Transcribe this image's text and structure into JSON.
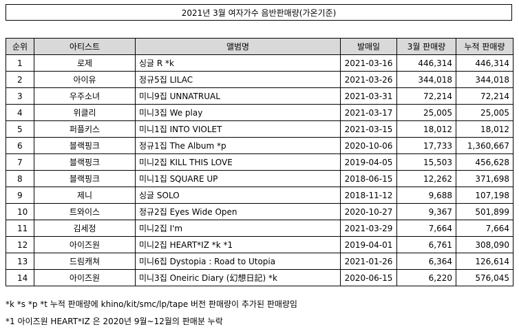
{
  "title": "2021년 3월 여자가수 음반판매량(가온기준)",
  "headers": [
    "순위",
    "아티스트",
    "앨범명",
    "발매일",
    "3월 판매량",
    "누적 판매량"
  ],
  "rows": [
    {
      "rank": "1",
      "artist": "로제",
      "album": "싱글 R *k",
      "date": "2021-03-16",
      "march": "446,314",
      "total": "446,314"
    },
    {
      "rank": "2",
      "artist": "아이유",
      "album": "정규5집 LILAC",
      "date": "2021-03-26",
      "march": "344,018",
      "total": "344,018"
    },
    {
      "rank": "3",
      "artist": "우주소녀",
      "album": "미니9집 UNNATRUAL",
      "date": "2021-03-31",
      "march": "72,214",
      "total": "72,214"
    },
    {
      "rank": "4",
      "artist": "위클리",
      "album": "미니3집 We play",
      "date": "2021-03-17",
      "march": "25,005",
      "total": "25,005"
    },
    {
      "rank": "5",
      "artist": "퍼플키스",
      "album": "미니1집 INTO VIOLET",
      "date": "2021-03-15",
      "march": "18,012",
      "total": "18,012"
    },
    {
      "rank": "6",
      "artist": "블랙핑크",
      "album": "정규1집 The Album *p",
      "date": "2020-10-06",
      "march": "17,733",
      "total": "1,360,667"
    },
    {
      "rank": "7",
      "artist": "블랙핑크",
      "album": "미니2집 KILL THIS LOVE",
      "date": "2019-04-05",
      "march": "15,503",
      "total": "456,628"
    },
    {
      "rank": "8",
      "artist": "블랙핑크",
      "album": "미니1집 SQUARE UP",
      "date": "2018-06-15",
      "march": "12,262",
      "total": "371,698"
    },
    {
      "rank": "9",
      "artist": "제니",
      "album": "싱글 SOLO",
      "date": "2018-11-12",
      "march": "9,688",
      "total": "107,198"
    },
    {
      "rank": "10",
      "artist": "트와이스",
      "album": "정규2집 Eyes Wide Open",
      "date": "2020-10-27",
      "march": "9,367",
      "total": "501,899"
    },
    {
      "rank": "11",
      "artist": "김세정",
      "album": "미니2집 I'm",
      "date": "2021-03-29",
      "march": "7,664",
      "total": "7,664"
    },
    {
      "rank": "12",
      "artist": "아이즈원",
      "album": "미니2집 HEART*IZ *k *1",
      "date": "2019-04-01",
      "march": "6,761",
      "total": "308,090"
    },
    {
      "rank": "13",
      "artist": "드림캐쳐",
      "album": "미니6집 Dystopia : Road to Utopia",
      "date": "2021-01-26",
      "march": "6,364",
      "total": "126,614"
    },
    {
      "rank": "14",
      "artist": "아이즈원",
      "album": "미니3집 Oneiric Diary (幻想日記) *k",
      "date": "2020-06-15",
      "march": "6,220",
      "total": "576,045"
    }
  ],
  "notes": [
    "*k *s *p *t 누적 판매량에 khino/kit/smc/lp/tape 버전 판매량이 추가된 판매량임",
    "*1 아이즈원 HEART*IZ 은 2020년 9월~12월의 판매분 누락"
  ]
}
